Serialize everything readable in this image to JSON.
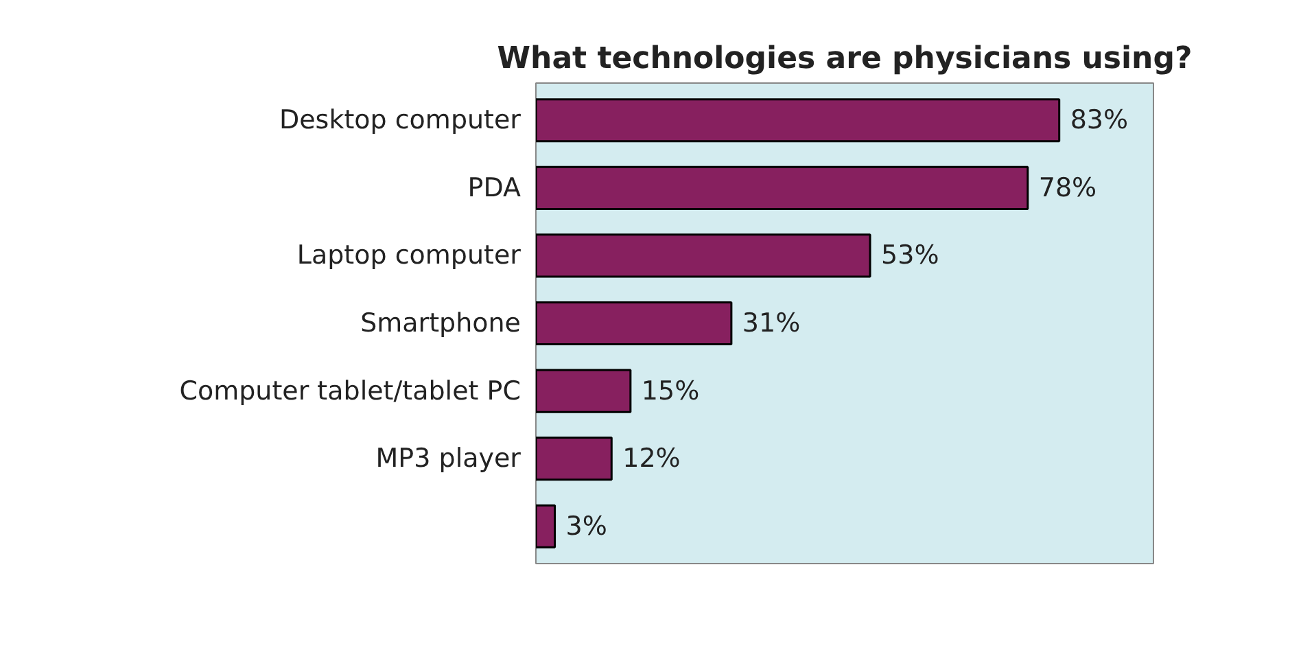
{
  "chart_data": {
    "type": "bar",
    "orientation": "horizontal",
    "title": "What technologies are physicians using?",
    "categories": [
      "Desktop computer",
      "PDA",
      "Laptop computer",
      "Smartphone",
      "Computer tablet/tablet PC",
      "MP3 player",
      null
    ],
    "values": [
      83,
      78,
      53,
      31,
      15,
      12,
      3
    ],
    "value_labels": [
      "83%",
      "78%",
      "53%",
      "31%",
      "15%",
      "12%",
      "3%"
    ],
    "color": "#87205f",
    "grid": false
  }
}
